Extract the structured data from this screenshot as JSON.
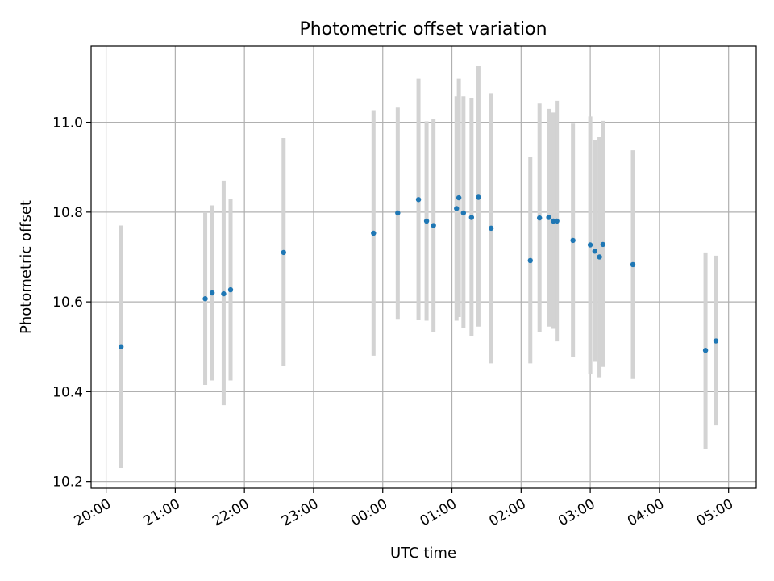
{
  "chart_data": {
    "type": "scatter",
    "title": "Photometric offset variation",
    "xlabel": "UTC time",
    "ylabel": "Photometric offset",
    "x_ticks": [
      "20:00",
      "21:00",
      "22:00",
      "23:00",
      "00:00",
      "01:00",
      "02:00",
      "03:00",
      "04:00",
      "05:00"
    ],
    "y_ticks": [
      "10.2",
      "10.4",
      "10.6",
      "10.8",
      "11.0"
    ],
    "ylim": [
      10.185,
      11.17
    ],
    "xlim": [
      "19:47",
      "05:24"
    ],
    "grid": true,
    "point_color": "#1f77b4",
    "errorbar_color": "#d3d3d3",
    "points": [
      {
        "x": "20:13",
        "y": 10.5,
        "ymin": 10.23,
        "ymax": 10.77
      },
      {
        "x": "21:26",
        "y": 10.607,
        "ymin": 10.415,
        "ymax": 10.8
      },
      {
        "x": "21:32",
        "y": 10.62,
        "ymin": 10.425,
        "ymax": 10.815
      },
      {
        "x": "21:42",
        "y": 10.618,
        "ymin": 10.37,
        "ymax": 10.87
      },
      {
        "x": "21:48",
        "y": 10.627,
        "ymin": 10.425,
        "ymax": 10.83
      },
      {
        "x": "22:34",
        "y": 10.71,
        "ymin": 10.458,
        "ymax": 10.965
      },
      {
        "x": "23:52",
        "y": 10.753,
        "ymin": 10.48,
        "ymax": 11.027
      },
      {
        "x": "00:13",
        "y": 10.798,
        "ymin": 10.562,
        "ymax": 11.033
      },
      {
        "x": "00:31",
        "y": 10.828,
        "ymin": 10.56,
        "ymax": 11.097
      },
      {
        "x": "00:38",
        "y": 10.78,
        "ymin": 10.558,
        "ymax": 11.002
      },
      {
        "x": "00:44",
        "y": 10.77,
        "ymin": 10.532,
        "ymax": 11.007
      },
      {
        "x": "01:04",
        "y": 10.808,
        "ymin": 10.558,
        "ymax": 11.058
      },
      {
        "x": "01:06",
        "y": 10.832,
        "ymin": 10.566,
        "ymax": 11.097
      },
      {
        "x": "01:10",
        "y": 10.798,
        "ymin": 10.542,
        "ymax": 11.058
      },
      {
        "x": "01:17",
        "y": 10.788,
        "ymin": 10.523,
        "ymax": 11.055
      },
      {
        "x": "01:23",
        "y": 10.833,
        "ymin": 10.545,
        "ymax": 11.125
      },
      {
        "x": "01:34",
        "y": 10.764,
        "ymin": 10.463,
        "ymax": 11.065
      },
      {
        "x": "02:08",
        "y": 10.692,
        "ymin": 10.463,
        "ymax": 10.923
      },
      {
        "x": "02:16",
        "y": 10.787,
        "ymin": 10.533,
        "ymax": 11.042
      },
      {
        "x": "02:24",
        "y": 10.788,
        "ymin": 10.545,
        "ymax": 11.03
      },
      {
        "x": "02:28",
        "y": 10.78,
        "ymin": 10.54,
        "ymax": 11.022
      },
      {
        "x": "02:31",
        "y": 10.78,
        "ymin": 10.512,
        "ymax": 11.048
      },
      {
        "x": "02:45",
        "y": 10.737,
        "ymin": 10.477,
        "ymax": 10.997
      },
      {
        "x": "03:00",
        "y": 10.727,
        "ymin": 10.44,
        "ymax": 11.013
      },
      {
        "x": "03:04",
        "y": 10.713,
        "ymin": 10.468,
        "ymax": 10.961
      },
      {
        "x": "03:08",
        "y": 10.7,
        "ymin": 10.432,
        "ymax": 10.967
      },
      {
        "x": "03:11",
        "y": 10.728,
        "ymin": 10.455,
        "ymax": 11.003
      },
      {
        "x": "03:37",
        "y": 10.683,
        "ymin": 10.428,
        "ymax": 10.938
      },
      {
        "x": "04:40",
        "y": 10.492,
        "ymin": 10.272,
        "ymax": 10.71
      },
      {
        "x": "04:49",
        "y": 10.513,
        "ymin": 10.325,
        "ymax": 10.703
      }
    ]
  }
}
